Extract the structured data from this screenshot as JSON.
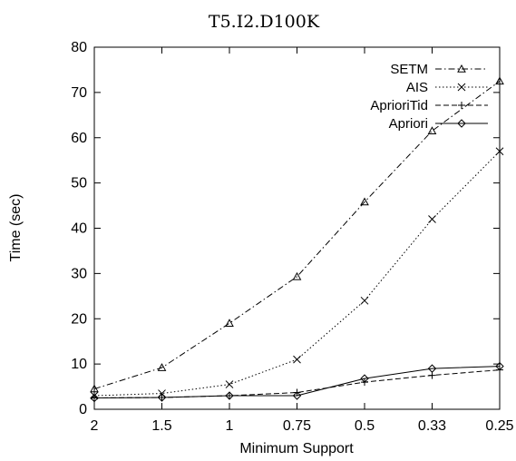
{
  "chart_data": {
    "type": "line",
    "title": "T5.I2.D100K",
    "xlabel": "Minimum Support",
    "ylabel": "Time (sec)",
    "categories": [
      "2",
      "1.5",
      "1",
      "0.75",
      "0.5",
      "0.33",
      "0.25"
    ],
    "ylim": [
      0,
      80
    ],
    "yticks": [
      0,
      10,
      20,
      30,
      40,
      50,
      60,
      70,
      80
    ],
    "grid": false,
    "legend_position": "top-right",
    "series": [
      {
        "name": "SETM",
        "marker": "triangle",
        "dash": "dashdot",
        "values": [
          4.5,
          9.2,
          19.0,
          29.3,
          45.8,
          61.5,
          72.5
        ]
      },
      {
        "name": "AIS",
        "marker": "x",
        "dash": "dotted",
        "values": [
          3.0,
          3.5,
          5.5,
          11.0,
          24.0,
          42.0,
          57.0
        ]
      },
      {
        "name": "AprioriTid",
        "marker": "plus",
        "dash": "dashed",
        "values": [
          2.5,
          2.6,
          3.0,
          3.7,
          6.0,
          7.5,
          8.7
        ]
      },
      {
        "name": "Apriori",
        "marker": "diamond",
        "dash": "solid",
        "values": [
          2.5,
          2.6,
          3.0,
          3.0,
          6.8,
          9.0,
          9.5
        ]
      }
    ]
  }
}
